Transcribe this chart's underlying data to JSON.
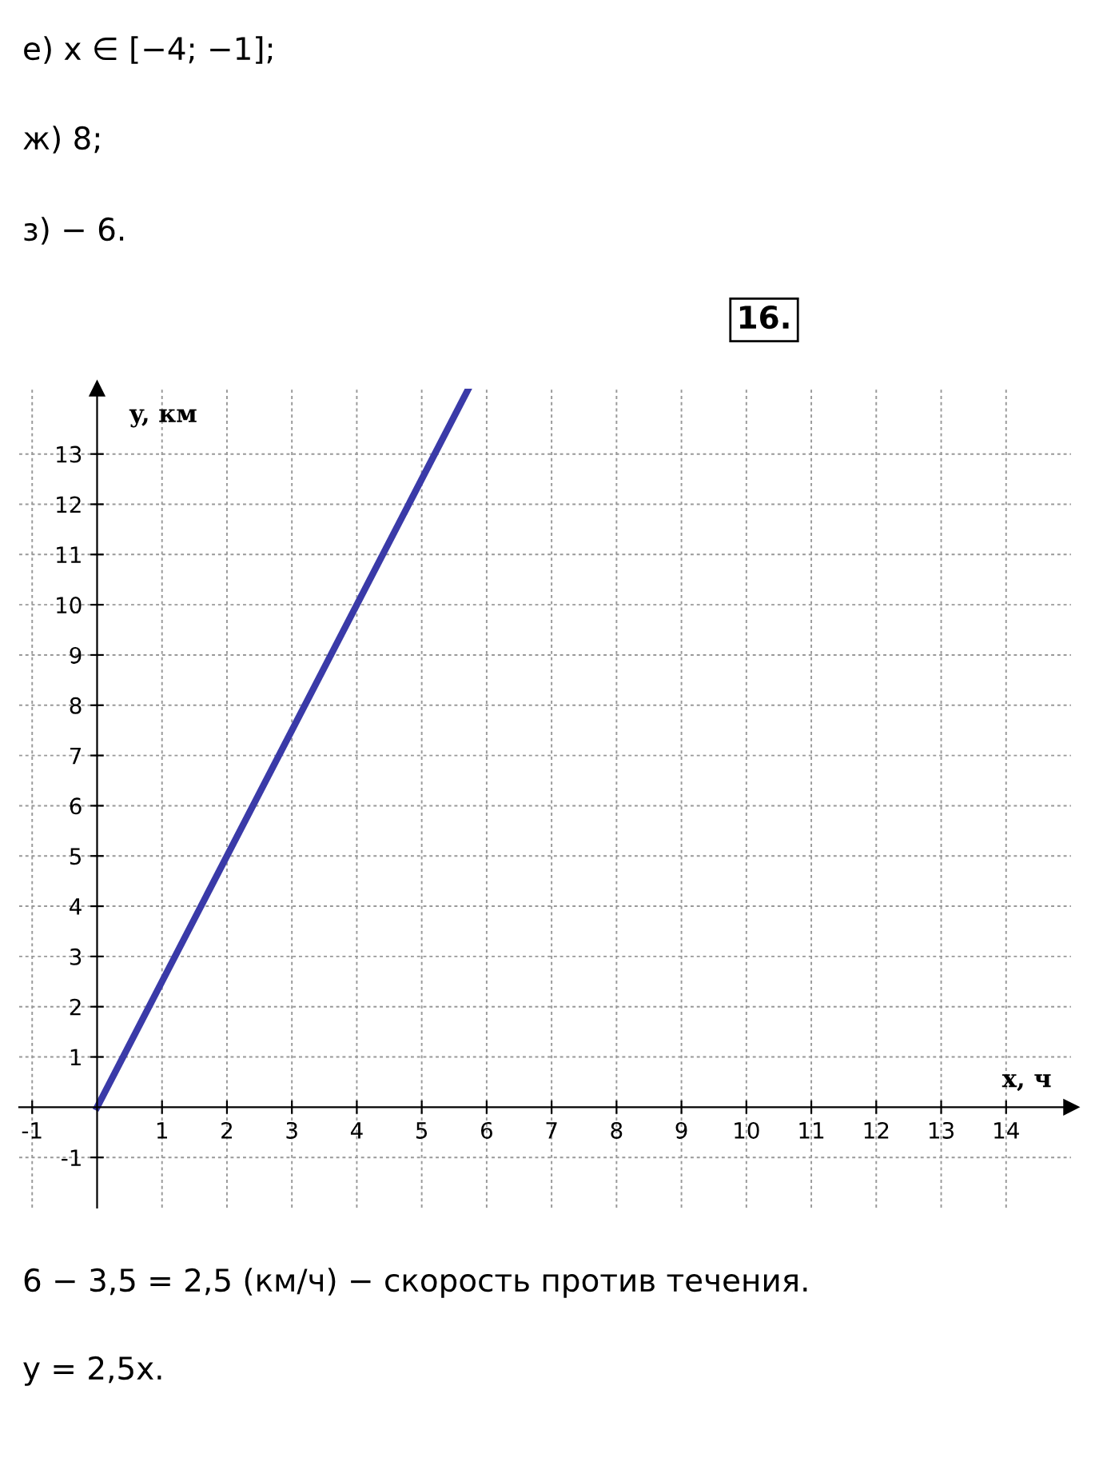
{
  "chart_data": {
    "type": "line",
    "xlabel": "x, ч",
    "ylabel": "y, км",
    "series": [
      {
        "color": "#3a3aa8",
        "x": [
          0,
          5.72
        ],
        "values": [
          0,
          14.3
        ]
      }
    ],
    "xlim": [
      -1.2,
      15
    ],
    "ylim": [
      -2,
      14.3
    ],
    "xticks": [
      -1,
      1,
      2,
      3,
      4,
      5,
      6,
      7,
      8,
      9,
      10,
      11,
      12,
      13,
      14
    ],
    "yticks": [
      -1,
      1,
      2,
      3,
      4,
      5,
      6,
      7,
      8,
      9,
      10,
      11,
      12,
      13
    ],
    "grid": true,
    "marker": "none",
    "line_style": "solid",
    "annotations": [
      "е) x ∈ [−4; −1];",
      "ж) 8;",
      "з) − 6.",
      "16.",
      "6 − 3,5 = 2,5 (км/ч) − скорость против течения.",
      "y = 2,5x."
    ]
  }
}
